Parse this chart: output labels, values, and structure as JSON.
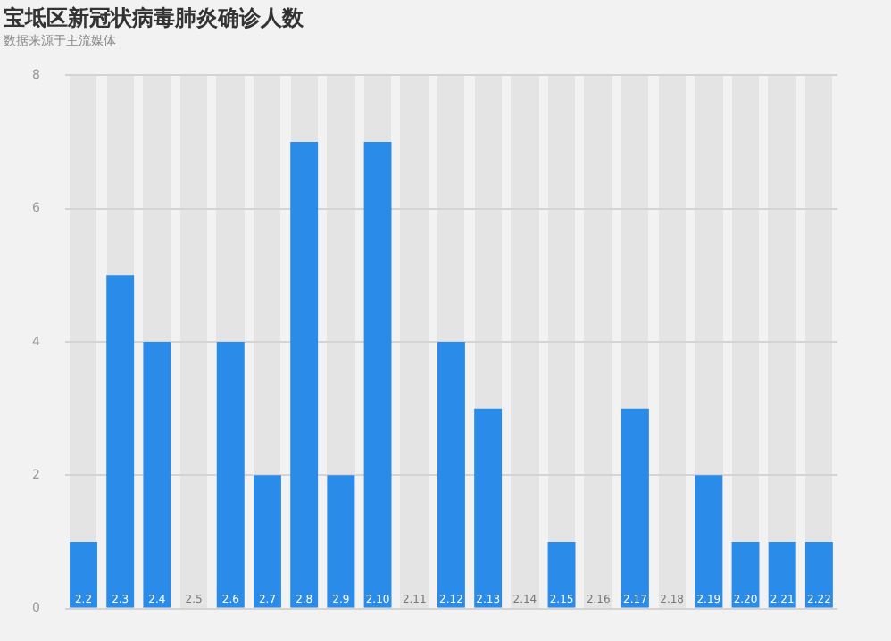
{
  "chart_data": {
    "type": "bar",
    "title": "宝坻区新冠状病毒肺炎确诊人数",
    "subtitle": "数据来源于主流媒体",
    "categories": [
      "2.2",
      "2.3",
      "2.4",
      "2.5",
      "2.6",
      "2.7",
      "2.8",
      "2.9",
      "2.10",
      "2.11",
      "2.12",
      "2.13",
      "2.14",
      "2.15",
      "2.16",
      "2.17",
      "2.18",
      "2.19",
      "2.20",
      "2.21",
      "2.22"
    ],
    "values": [
      1,
      5,
      4,
      0,
      4,
      2,
      7,
      2,
      7,
      0,
      4,
      3,
      0,
      1,
      0,
      3,
      0,
      2,
      1,
      1,
      1
    ],
    "color": "#2b8be8",
    "ylim": [
      0,
      8
    ],
    "yticks": [
      0,
      2,
      4,
      6,
      8
    ],
    "grid": "y",
    "legend": false
  }
}
